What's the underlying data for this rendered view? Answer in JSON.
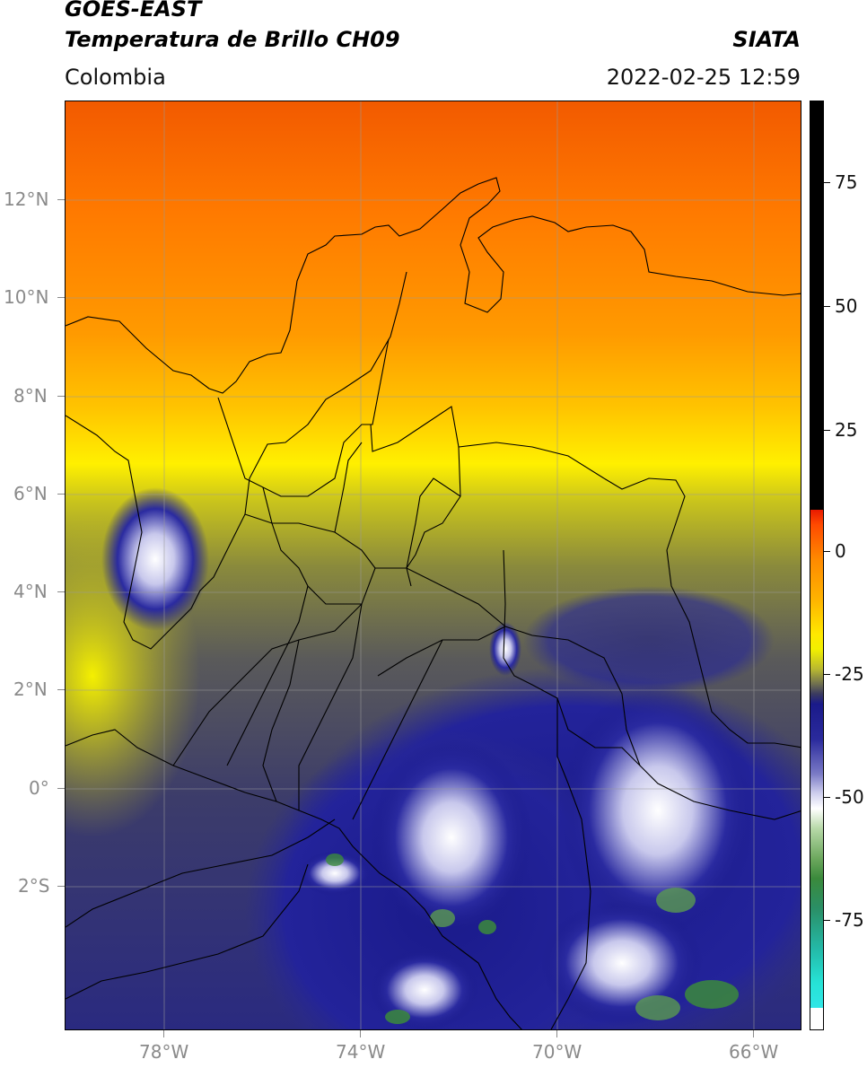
{
  "header": {
    "satellite": "GOES-EAST",
    "product": "Temperatura de Brillo CH09",
    "institution": "SIATA",
    "region": "Colombia",
    "datetime": "2022-02-25 12:59"
  },
  "map": {
    "lon_labels": [
      "78°W",
      "74°W",
      "70°W",
      "66°W"
    ],
    "lat_labels": [
      "12°N",
      "10°N",
      "8°N",
      "6°N",
      "4°N",
      "2°N",
      "0°",
      "2°S"
    ]
  },
  "colorbar": {
    "tick_labels": [
      "75",
      "50",
      "25",
      "0",
      "-25",
      "-50",
      "-75"
    ],
    "colors": {
      "above": "#000000",
      "warm": "#ff8a00",
      "mid": "#ffe800",
      "cold": "#1a1a8a",
      "colder": "#ffffff",
      "coldest": "#30e6e6"
    }
  }
}
